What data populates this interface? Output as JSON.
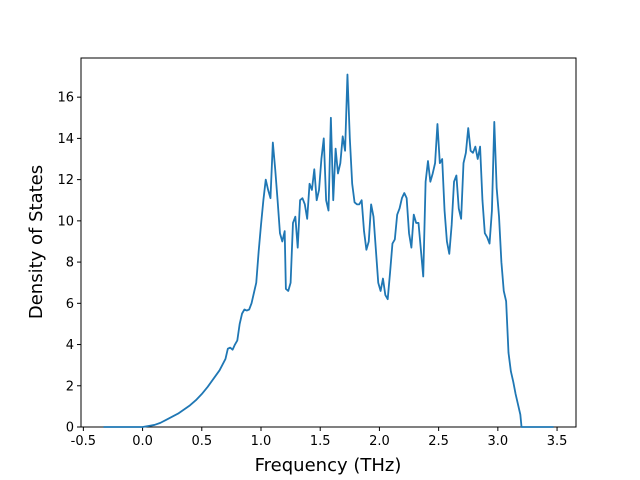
{
  "chart_data": {
    "type": "line",
    "xlabel": "Frequency (THz)",
    "ylabel": "Density of States",
    "color": "#1f77b4",
    "x": [
      -0.33,
      0.0,
      0.05,
      0.1,
      0.15,
      0.2,
      0.25,
      0.3,
      0.35,
      0.4,
      0.45,
      0.5,
      0.55,
      0.6,
      0.65,
      0.7,
      0.72,
      0.74,
      0.76,
      0.78,
      0.8,
      0.82,
      0.84,
      0.86,
      0.88,
      0.9,
      0.92,
      0.94,
      0.96,
      0.98,
      1.0,
      1.02,
      1.04,
      1.06,
      1.08,
      1.1,
      1.12,
      1.14,
      1.16,
      1.18,
      1.2,
      1.21,
      1.23,
      1.25,
      1.27,
      1.29,
      1.31,
      1.33,
      1.35,
      1.37,
      1.39,
      1.41,
      1.43,
      1.45,
      1.47,
      1.49,
      1.51,
      1.53,
      1.55,
      1.57,
      1.59,
      1.61,
      1.63,
      1.65,
      1.67,
      1.69,
      1.71,
      1.73,
      1.75,
      1.77,
      1.79,
      1.81,
      1.83,
      1.85,
      1.87,
      1.89,
      1.91,
      1.93,
      1.95,
      1.97,
      1.99,
      2.01,
      2.03,
      2.05,
      2.07,
      2.09,
      2.11,
      2.13,
      2.15,
      2.17,
      2.19,
      2.21,
      2.23,
      2.25,
      2.27,
      2.29,
      2.31,
      2.33,
      2.35,
      2.37,
      2.39,
      2.41,
      2.43,
      2.45,
      2.47,
      2.49,
      2.51,
      2.53,
      2.55,
      2.57,
      2.59,
      2.61,
      2.63,
      2.65,
      2.67,
      2.69,
      2.71,
      2.73,
      2.75,
      2.77,
      2.79,
      2.81,
      2.83,
      2.85,
      2.87,
      2.89,
      2.91,
      2.93,
      2.95,
      2.97,
      2.99,
      3.01,
      3.03,
      3.05,
      3.07,
      3.09,
      3.11,
      3.13,
      3.15,
      3.17,
      3.19,
      3.2,
      3.47
    ],
    "values": [
      0,
      0,
      0.05,
      0.1,
      0.2,
      0.35,
      0.5,
      0.65,
      0.85,
      1.05,
      1.3,
      1.6,
      1.95,
      2.35,
      2.75,
      3.3,
      3.8,
      3.85,
      3.75,
      4.0,
      4.2,
      5.0,
      5.5,
      5.7,
      5.65,
      5.7,
      6.0,
      6.5,
      7.0,
      8.5,
      9.8,
      11.0,
      12.0,
      11.5,
      11.1,
      13.8,
      12.5,
      11.0,
      9.4,
      9.0,
      9.5,
      6.7,
      6.6,
      7.0,
      9.9,
      10.2,
      8.7,
      11.0,
      11.1,
      10.8,
      10.1,
      11.8,
      11.5,
      12.5,
      11.0,
      11.5,
      13.0,
      14.0,
      11.0,
      10.5,
      15.0,
      11.0,
      13.5,
      12.3,
      12.8,
      14.1,
      13.4,
      17.1,
      14.0,
      11.8,
      10.9,
      10.8,
      10.8,
      11.0,
      9.5,
      8.6,
      9.0,
      10.8,
      10.2,
      8.6,
      7.0,
      6.6,
      7.2,
      6.4,
      6.2,
      7.5,
      8.9,
      9.1,
      10.3,
      10.6,
      11.1,
      11.35,
      11.1,
      9.4,
      8.7,
      10.3,
      9.9,
      9.9,
      8.6,
      7.3,
      11.9,
      12.9,
      11.9,
      12.3,
      12.8,
      14.7,
      12.8,
      13.0,
      10.5,
      9.0,
      8.4,
      9.8,
      11.9,
      12.2,
      10.6,
      10.1,
      12.8,
      13.3,
      14.5,
      13.4,
      13.3,
      13.6,
      13.0,
      13.6,
      11.0,
      9.4,
      9.2,
      8.9,
      10.5,
      14.8,
      11.6,
      10.2,
      8.0,
      6.6,
      6.1,
      3.6,
      2.7,
      2.2,
      1.6,
      1.1,
      0.6,
      0,
      0
    ],
    "xlim": [
      -0.52,
      3.66
    ],
    "ylim": [
      0,
      17.9
    ],
    "xticks": [
      -0.5,
      {
        "value": 0,
        "label": "0.0"
      },
      0.5,
      {
        "value": 1,
        "label": "1.0"
      },
      1.5,
      {
        "value": 2,
        "label": "2.0"
      },
      2.5,
      {
        "value": 3,
        "label": "3.0"
      },
      3.5
    ],
    "yticks": [
      0,
      2,
      4,
      6,
      8,
      10,
      12,
      14,
      16
    ]
  }
}
